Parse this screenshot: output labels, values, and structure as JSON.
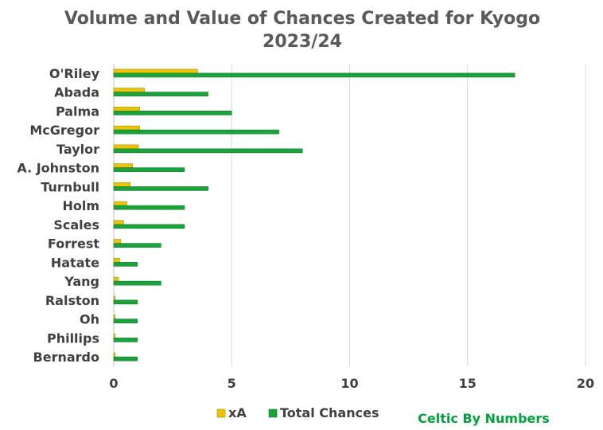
{
  "chart_data": {
    "type": "bar",
    "orientation": "horizontal",
    "title": "Volume and Value of Chances Created for Kyogo",
    "subtitle": "2023/24",
    "categories": [
      "O'Riley",
      "Abada",
      "Palma",
      "McGregor",
      "Taylor",
      "A. Johnston",
      "Turnbull",
      "Holm",
      "Scales",
      "Forrest",
      "Hatate",
      "Yang",
      "Ralston",
      "Oh",
      "Phillips",
      "Bernardo"
    ],
    "series": [
      {
        "name": "xA",
        "color": "#f2c200",
        "values": [
          3.55,
          1.3,
          1.1,
          1.1,
          1.05,
          0.8,
          0.7,
          0.55,
          0.42,
          0.3,
          0.25,
          0.2,
          0.06,
          0.06,
          0.06,
          0.06
        ]
      },
      {
        "name": "Total Chances",
        "color": "#1aa33a",
        "values": [
          17,
          4,
          5,
          7,
          8,
          3,
          4,
          3,
          3,
          2,
          1,
          2,
          1,
          1,
          1,
          1
        ]
      }
    ],
    "xlim": [
      0,
      20
    ],
    "xticks": [
      "0",
      "5",
      "10",
      "15",
      "20"
    ],
    "xtick_values": [
      0,
      5,
      10,
      15,
      20
    ],
    "grid": true,
    "legend_position": "bottom",
    "xlabel": "",
    "ylabel": ""
  },
  "credit": "Celtic By Numbers"
}
